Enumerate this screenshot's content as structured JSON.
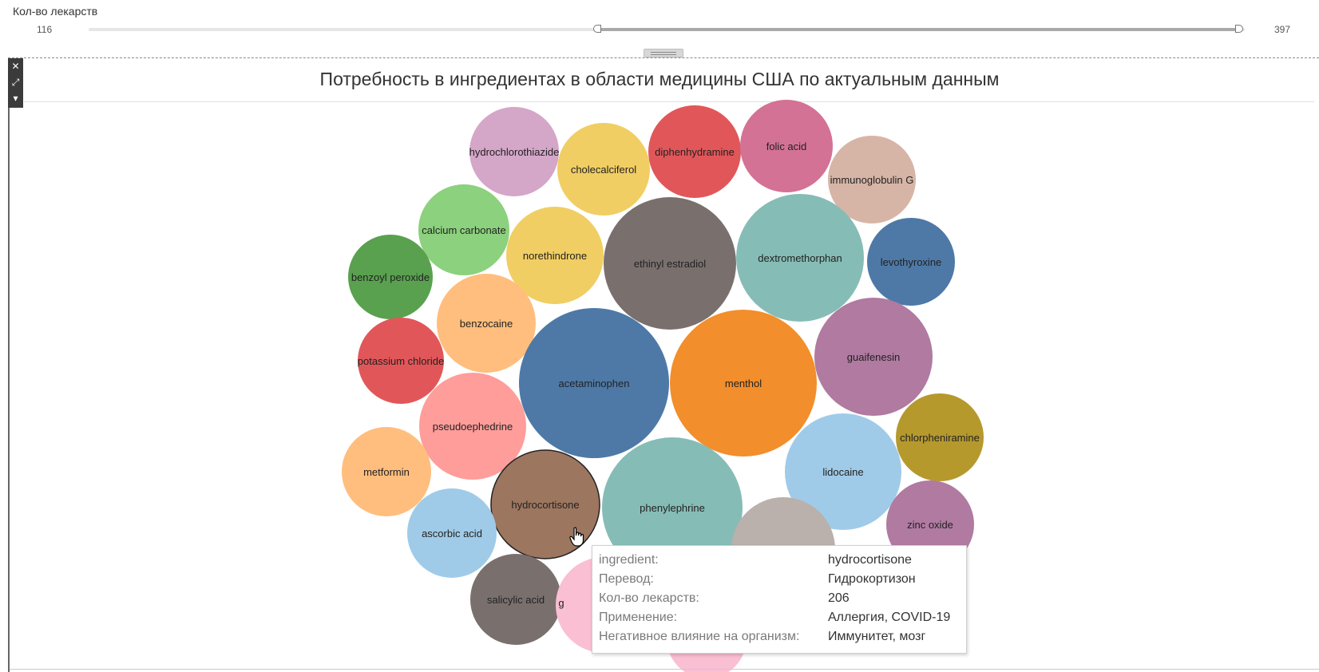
{
  "filter": {
    "label": "Кол-во лекарств",
    "min": "116",
    "max": "397",
    "selected_from": 206,
    "range": [
      116,
      397
    ]
  },
  "toolbar": {
    "close": "✕",
    "popout": "⤢",
    "menu": "▾"
  },
  "chart_data": {
    "type": "bubble",
    "title": "Потребность в ингредиентах в области медицины США по актуальным данным",
    "size_field": "Кол-во лекарств",
    "bubbles": [
      {
        "label": "hydrochlorothiazide",
        "color": "#d4a6c8"
      },
      {
        "label": "cholecalciferol",
        "color": "#f1ce63"
      },
      {
        "label": "diphenhydramine",
        "color": "#e15759"
      },
      {
        "label": "folic acid",
        "color": "#d37295"
      },
      {
        "label": "immunoglobulin G",
        "color": "#d7b5a6"
      },
      {
        "label": "calcium carbonate",
        "color": "#8cd17d"
      },
      {
        "label": "norethindrone",
        "color": "#f1ce63"
      },
      {
        "label": "ethinyl estradiol",
        "color": "#79706e"
      },
      {
        "label": "dextromethorphan",
        "color": "#86bcb6"
      },
      {
        "label": "levothyroxine",
        "color": "#4e79a7"
      },
      {
        "label": "benzoyl peroxide",
        "color": "#59a14f"
      },
      {
        "label": "benzocaine",
        "color": "#ffbe7d"
      },
      {
        "label": "potassium chloride",
        "color": "#e15759"
      },
      {
        "label": "acetaminophen",
        "color": "#4e79a7"
      },
      {
        "label": "menthol",
        "color": "#f28e2b"
      },
      {
        "label": "guaifenesin",
        "color": "#b07aa1"
      },
      {
        "label": "pseudoephedrine",
        "color": "#ff9d9a"
      },
      {
        "label": "chlorpheniramine",
        "color": "#b6992d"
      },
      {
        "label": "metformin",
        "color": "#ffbe7d"
      },
      {
        "label": "lidocaine",
        "color": "#a0cbe8"
      },
      {
        "label": "hydrocortisone",
        "color": "#9d7660"
      },
      {
        "label": "phenylephrine",
        "color": "#86bcb6"
      },
      {
        "label": "ascorbic acid",
        "color": "#a0cbe8"
      },
      {
        "label": "zinc oxide",
        "color": "#b07aa1"
      },
      {
        "label": "",
        "color": "#bab0ac"
      },
      {
        "label": "salicylic acid",
        "color": "#79706e"
      },
      {
        "label": "g",
        "color": "#fabfd2"
      },
      {
        "label": "",
        "color": "#fabfd2"
      }
    ],
    "highlighted": "hydrocortisone"
  },
  "tooltip": {
    "rows": [
      {
        "key": "ingredient:",
        "value": "hydrocortisone"
      },
      {
        "key": "Перевод:",
        "value": "Гидрокортизон"
      },
      {
        "key": "Кол-во лекарств:",
        "value": "206"
      },
      {
        "key": "Применение:",
        "value": "Аллергия, COVID-19"
      },
      {
        "key": "Негативное влияние на организм:",
        "value": "Иммунитет, мозг"
      }
    ]
  }
}
